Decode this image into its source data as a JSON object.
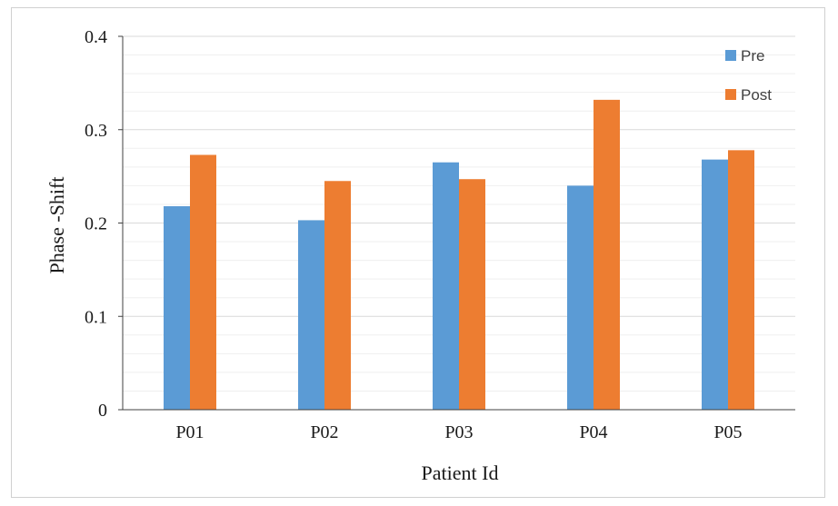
{
  "chart_data": {
    "type": "bar",
    "categories": [
      "P01",
      "P02",
      "P03",
      "P04",
      "P05"
    ],
    "series": [
      {
        "name": "Pre",
        "color": "#5b9bd5",
        "values": [
          0.218,
          0.203,
          0.265,
          0.24,
          0.268
        ]
      },
      {
        "name": "Post",
        "color": "#ed7d31",
        "values": [
          0.273,
          0.245,
          0.247,
          0.332,
          0.278
        ]
      }
    ],
    "xlabel": "Patient Id",
    "ylabel": "Phase -Shift",
    "ylim": [
      0,
      0.4
    ],
    "yticks": [
      "0",
      "0.1",
      "0.2",
      "0.3",
      "0.4"
    ],
    "ytick_values": [
      0,
      0.1,
      0.2,
      0.3,
      0.4
    ],
    "grid": true,
    "legend": "top-right"
  }
}
